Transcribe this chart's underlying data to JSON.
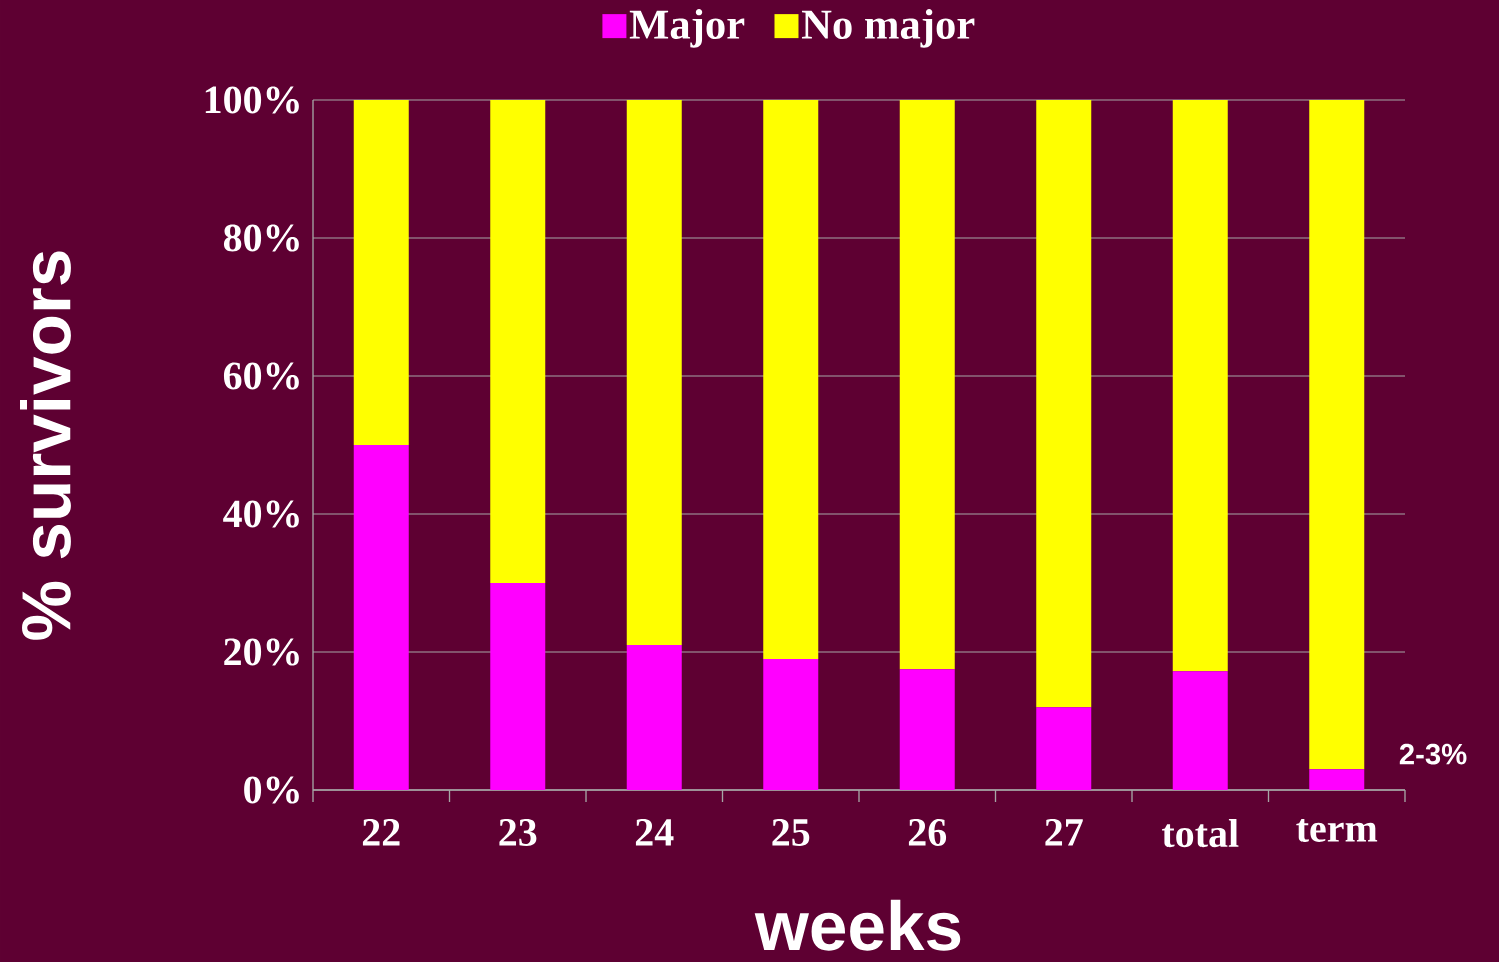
{
  "chart_data": {
    "type": "bar",
    "stacked": true,
    "categories": [
      "22",
      "23",
      "24",
      "25",
      "26",
      "27",
      "total",
      "term"
    ],
    "series": [
      {
        "name": "Major",
        "color": "#ff00ff",
        "values": [
          50,
          30,
          21,
          19,
          17.5,
          12,
          17.2,
          3
        ]
      },
      {
        "name": "No major",
        "color": "#ffff00",
        "values": [
          50,
          70,
          79,
          81,
          82.5,
          88,
          82.8,
          97
        ]
      }
    ],
    "xlabel": "weeks",
    "ylabel": "% survivors",
    "ylim": [
      0,
      100
    ],
    "yticks": [
      {
        "value": 0,
        "label": "0%"
      },
      {
        "value": 20,
        "label": "20%"
      },
      {
        "value": 40,
        "label": "40%"
      },
      {
        "value": 60,
        "label": "60%"
      },
      {
        "value": 80,
        "label": "80%"
      },
      {
        "value": 100,
        "label": "100%"
      }
    ],
    "grid": "y",
    "legend": "top",
    "annotations": [
      {
        "text": "2-3%",
        "x": "term",
        "y": 3
      }
    ]
  }
}
